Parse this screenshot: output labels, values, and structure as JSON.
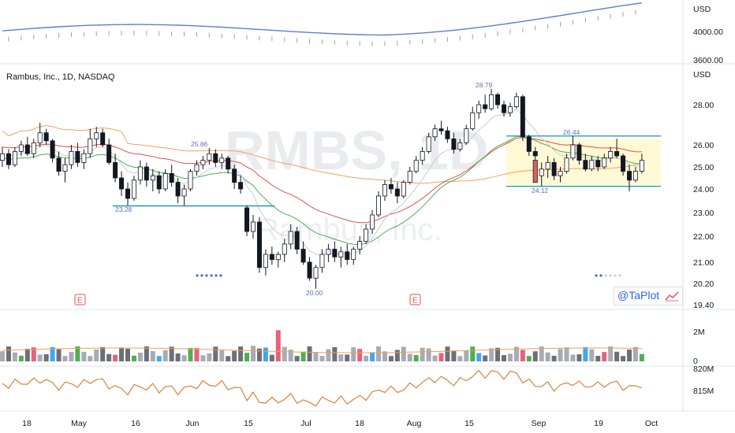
{
  "symbol": {
    "name": "Rambus, Inc.",
    "interval": "1D",
    "exchange": "NASDAQ",
    "legend": "Rambus, Inc., 1D, NASDAQ",
    "watermark": "RMBS, 1D",
    "watermark_sub": "Rambus, Inc."
  },
  "badge_label": "@TaPlot",
  "colors": {
    "up": "#ffffff",
    "down": "#131722",
    "ema_slow": "#e0504a",
    "ema_mid": "#f5a05a",
    "ema_fast": "#4caf50",
    "support": "#119b9b",
    "highlight": "#fff9d6",
    "line_top": "#5b7ed6",
    "hilo_text": "#5a6fc8"
  },
  "price_axis": {
    "unit": "USD",
    "ticks": [
      "28.00",
      "26.00",
      "25.00",
      "24.00",
      "23.00",
      "22.00",
      "21.00",
      "20.20",
      "19.40"
    ]
  },
  "index_axis": {
    "unit": "USD",
    "ticks": [
      "4000.00",
      "3600.00"
    ]
  },
  "volume_axis": {
    "ticks": [
      "2M",
      "0"
    ]
  },
  "osc_axis": {
    "ticks": [
      "820M",
      "815M"
    ]
  },
  "x_axis": {
    "ticks": [
      "18",
      "May",
      "16",
      "Jun",
      "15",
      "Jul",
      "18",
      "Aug",
      "15",
      "Sep",
      "19",
      "Oct"
    ]
  },
  "annotations": {
    "high_may": "25.86",
    "low_may": "23.28",
    "low_jun": "20.00",
    "high_aug": "28.79",
    "high_sep": "26.44",
    "low_sep": "24.12"
  },
  "earnings_marker": "E",
  "chart_data": {
    "type": "candlestick",
    "title": "Rambus, Inc., 1D, NASDAQ",
    "ylabel": "USD",
    "ylim": [
      19.4,
      29.0
    ],
    "x_ticks": [
      "18",
      "May",
      "16",
      "Jun",
      "15",
      "Jul",
      "18",
      "Aug",
      "15",
      "Sep",
      "19",
      "Oct"
    ],
    "candles": [
      [
        25.3,
        25.9,
        25.0,
        25.6
      ],
      [
        25.6,
        25.8,
        24.9,
        25.1
      ],
      [
        25.1,
        25.9,
        25.0,
        25.7
      ],
      [
        25.7,
        26.2,
        25.5,
        26.0
      ],
      [
        26.0,
        26.4,
        25.5,
        25.6
      ],
      [
        25.6,
        26.3,
        25.4,
        26.1
      ],
      [
        26.1,
        27.1,
        25.9,
        26.6
      ],
      [
        26.6,
        26.8,
        26.0,
        26.2
      ],
      [
        26.2,
        26.3,
        25.2,
        25.4
      ],
      [
        25.4,
        25.7,
        24.6,
        24.8
      ],
      [
        24.8,
        25.4,
        24.3,
        25.1
      ],
      [
        25.1,
        26.0,
        24.9,
        25.7
      ],
      [
        25.7,
        26.1,
        25.0,
        25.2
      ],
      [
        25.2,
        25.8,
        24.9,
        25.6
      ],
      [
        25.6,
        26.8,
        25.4,
        26.3
      ],
      [
        26.3,
        26.9,
        25.9,
        26.6
      ],
      [
        26.6,
        26.8,
        25.9,
        26.0
      ],
      [
        26.0,
        26.3,
        25.1,
        25.2
      ],
      [
        25.2,
        25.6,
        24.3,
        24.5
      ],
      [
        24.5,
        24.8,
        23.7,
        24.0
      ],
      [
        24.0,
        24.3,
        23.3,
        23.6
      ],
      [
        23.6,
        24.6,
        23.5,
        24.4
      ],
      [
        24.4,
        25.3,
        24.2,
        25.0
      ],
      [
        25.0,
        25.2,
        24.1,
        24.4
      ],
      [
        24.4,
        24.9,
        23.9,
        24.6
      ],
      [
        24.6,
        24.8,
        23.8,
        24.0
      ],
      [
        24.0,
        24.9,
        23.9,
        24.7
      ],
      [
        24.7,
        25.1,
        24.1,
        24.3
      ],
      [
        24.3,
        24.5,
        23.4,
        23.7
      ],
      [
        23.7,
        24.2,
        23.3,
        24.0
      ],
      [
        24.0,
        24.9,
        23.9,
        24.8
      ],
      [
        24.8,
        25.3,
        24.6,
        25.1
      ],
      [
        25.1,
        25.5,
        24.9,
        25.3
      ],
      [
        25.3,
        25.86,
        25.1,
        25.6
      ],
      [
        25.6,
        25.8,
        25.0,
        25.2
      ],
      [
        25.2,
        25.6,
        24.9,
        25.4
      ],
      [
        25.4,
        25.5,
        24.7,
        24.9
      ],
      [
        24.9,
        25.1,
        24.0,
        24.3
      ],
      [
        24.3,
        24.6,
        23.8,
        24.0
      ],
      [
        23.2,
        23.3,
        22.0,
        22.2
      ],
      [
        22.2,
        22.9,
        21.9,
        22.6
      ],
      [
        22.6,
        22.8,
        20.6,
        20.8
      ],
      [
        20.8,
        21.5,
        20.5,
        21.3
      ],
      [
        21.3,
        21.6,
        20.9,
        21.1
      ],
      [
        21.1,
        21.4,
        20.8,
        21.3
      ],
      [
        21.3,
        21.9,
        21.0,
        21.7
      ],
      [
        21.7,
        22.5,
        21.5,
        22.2
      ],
      [
        22.2,
        22.4,
        21.3,
        21.5
      ],
      [
        21.5,
        21.8,
        20.9,
        21.0
      ],
      [
        21.0,
        21.2,
        20.3,
        20.4
      ],
      [
        20.4,
        20.9,
        20.0,
        20.8
      ],
      [
        20.8,
        21.5,
        20.6,
        21.3
      ],
      [
        21.3,
        21.7,
        21.0,
        21.5
      ],
      [
        21.5,
        21.8,
        21.0,
        21.2
      ],
      [
        21.2,
        21.6,
        20.8,
        21.4
      ],
      [
        21.4,
        21.7,
        20.9,
        21.1
      ],
      [
        21.1,
        21.6,
        20.9,
        21.5
      ],
      [
        21.5,
        22.0,
        21.3,
        21.8
      ],
      [
        21.8,
        22.5,
        21.7,
        22.3
      ],
      [
        22.3,
        23.1,
        22.1,
        22.9
      ],
      [
        22.9,
        23.9,
        22.8,
        23.7
      ],
      [
        23.7,
        24.4,
        23.5,
        24.2
      ],
      [
        24.2,
        24.5,
        23.8,
        24.0
      ],
      [
        24.0,
        24.3,
        23.4,
        23.7
      ],
      [
        23.7,
        24.4,
        23.6,
        24.3
      ],
      [
        24.3,
        25.0,
        24.2,
        24.8
      ],
      [
        24.8,
        25.5,
        24.7,
        25.3
      ],
      [
        25.3,
        25.9,
        25.1,
        25.7
      ],
      [
        25.7,
        26.6,
        25.6,
        26.4
      ],
      [
        26.4,
        27.0,
        26.2,
        26.8
      ],
      [
        26.8,
        27.2,
        26.5,
        26.7
      ],
      [
        26.7,
        26.9,
        26.1,
        26.3
      ],
      [
        26.3,
        26.6,
        25.6,
        25.8
      ],
      [
        25.8,
        26.3,
        25.7,
        26.1
      ],
      [
        26.1,
        27.0,
        26.0,
        26.8
      ],
      [
        26.8,
        27.9,
        26.7,
        27.6
      ],
      [
        27.6,
        28.2,
        27.3,
        28.0
      ],
      [
        28.0,
        28.5,
        27.6,
        27.8
      ],
      [
        27.8,
        28.79,
        27.7,
        28.5
      ],
      [
        28.5,
        28.6,
        27.8,
        28.0
      ],
      [
        28.0,
        28.2,
        27.4,
        27.6
      ],
      [
        27.6,
        28.1,
        27.4,
        27.9
      ],
      [
        27.9,
        28.6,
        27.8,
        28.4
      ],
      [
        28.4,
        28.5,
        26.2,
        26.4
      ],
      [
        26.4,
        26.5,
        25.5,
        25.7
      ],
      [
        25.7,
        25.9,
        25.2,
        25.5
      ],
      [
        24.6,
        25.2,
        24.12,
        24.9
      ],
      [
        24.9,
        25.5,
        24.5,
        25.2
      ],
      [
        25.2,
        25.4,
        24.4,
        24.6
      ],
      [
        24.6,
        25.0,
        24.3,
        24.8
      ],
      [
        24.8,
        25.6,
        24.7,
        25.4
      ],
      [
        25.4,
        26.44,
        25.3,
        26.0
      ],
      [
        26.0,
        26.1,
        25.1,
        25.3
      ],
      [
        25.3,
        25.6,
        24.8,
        24.9
      ],
      [
        24.9,
        25.5,
        24.8,
        25.3
      ],
      [
        25.3,
        25.5,
        24.8,
        25.0
      ],
      [
        25.0,
        25.6,
        24.9,
        25.4
      ],
      [
        25.4,
        25.9,
        25.2,
        25.7
      ],
      [
        25.7,
        26.3,
        25.4,
        25.5
      ],
      [
        25.5,
        25.6,
        24.6,
        24.8
      ],
      [
        24.8,
        25.1,
        23.9,
        24.4
      ],
      [
        24.4,
        25.0,
        24.3,
        24.8
      ],
      [
        24.8,
        25.6,
        24.7,
        25.3
      ]
    ],
    "support_levels": [
      23.28,
      24.12,
      26.44
    ],
    "range_box": {
      "low": 24.12,
      "high": 26.44
    },
    "volume": {
      "ylim": [
        0,
        3000000
      ]
    },
    "index_line": {
      "ylim": [
        3500,
        4300
      ]
    },
    "osc_line": {
      "ylim": [
        812,
        821
      ]
    }
  }
}
